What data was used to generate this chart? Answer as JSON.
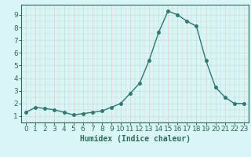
{
  "x": [
    0,
    1,
    2,
    3,
    4,
    5,
    6,
    7,
    8,
    9,
    10,
    11,
    12,
    13,
    14,
    15,
    16,
    17,
    18,
    19,
    20,
    21,
    22,
    23
  ],
  "y": [
    1.3,
    1.7,
    1.6,
    1.5,
    1.3,
    1.1,
    1.2,
    1.3,
    1.4,
    1.7,
    2.0,
    2.8,
    3.6,
    5.4,
    7.6,
    9.3,
    9.0,
    8.5,
    8.1,
    5.4,
    3.3,
    2.5,
    2.0,
    2.0
  ],
  "line_color": "#2d7a6e",
  "marker": "o",
  "marker_size": 2.5,
  "bg_color": "#d9f5f5",
  "grid_color": "#c8dada",
  "grid_color_alt": "#f0c8c8",
  "xlabel": "Humidex (Indice chaleur)",
  "xlabel_fontsize": 7,
  "xlim": [
    -0.5,
    23.5
  ],
  "ylim": [
    0.5,
    9.8
  ],
  "xticks": [
    0,
    1,
    2,
    3,
    4,
    5,
    6,
    7,
    8,
    9,
    10,
    11,
    12,
    13,
    14,
    15,
    16,
    17,
    18,
    19,
    20,
    21,
    22,
    23
  ],
  "yticks": [
    1,
    2,
    3,
    4,
    5,
    6,
    7,
    8,
    9
  ],
  "tick_fontsize": 6.5,
  "spine_color": "#2d6b5e",
  "line_width": 1.0
}
